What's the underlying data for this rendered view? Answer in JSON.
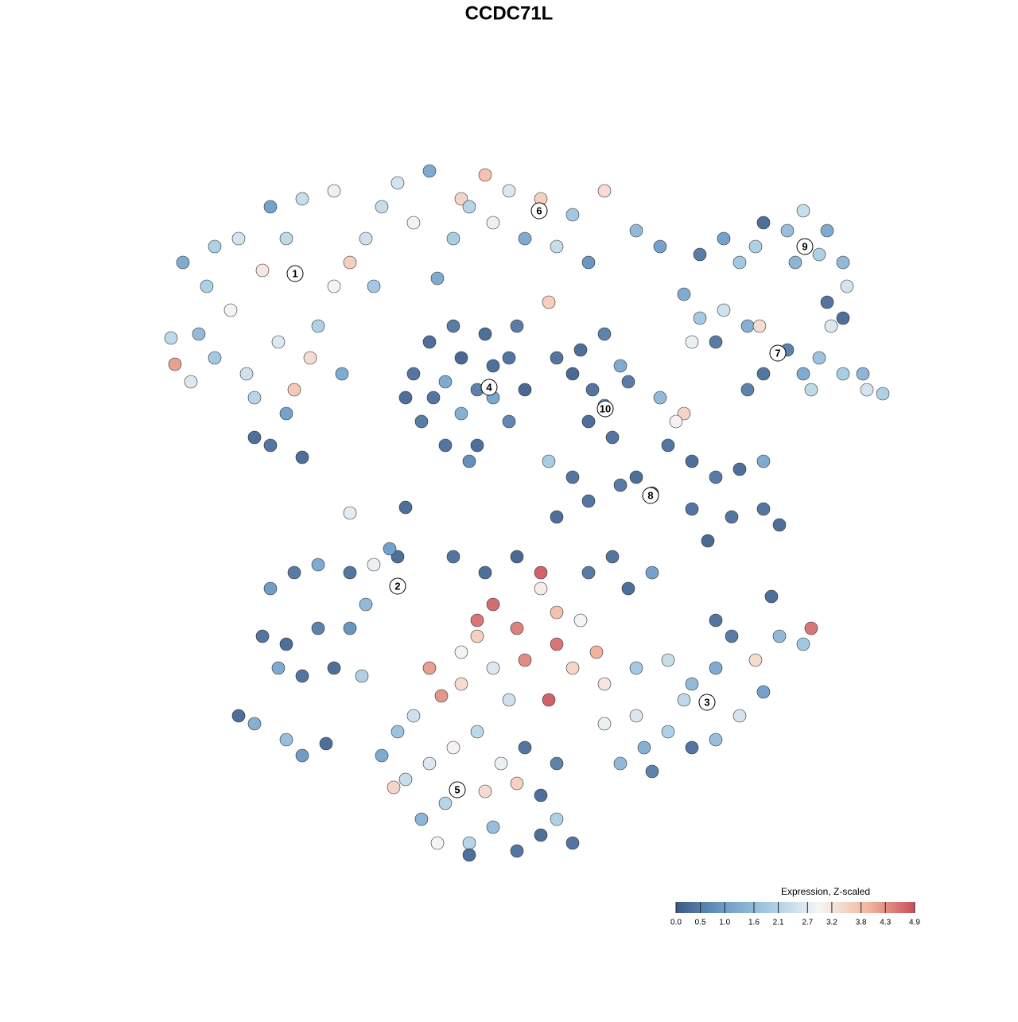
{
  "chart_data": {
    "type": "scatter",
    "title": "CCDC71L",
    "x": [
      -41,
      -38,
      -34,
      -30,
      -26,
      -22,
      -28,
      -31,
      -35,
      -39,
      -42.5,
      -42,
      -37,
      -33,
      -29,
      -25,
      -24,
      -20,
      -18,
      -17,
      -32,
      -28,
      -30,
      -26,
      -32,
      -22,
      -37,
      -40,
      -21,
      -27,
      -14,
      -10,
      -6,
      -3,
      0,
      4,
      8,
      12,
      16,
      19,
      6,
      2,
      -2,
      -7,
      -12,
      -16,
      -9,
      10,
      5,
      -5,
      -12,
      -10,
      -7,
      -3,
      0,
      2,
      0,
      -4,
      -8,
      -11,
      -8,
      -4,
      -2,
      -6,
      -13,
      -6,
      -2,
      -5,
      -9.5,
      1,
      24,
      27,
      31,
      35,
      37,
      40,
      42,
      42.5,
      40,
      42,
      32,
      29,
      36,
      39,
      22,
      24,
      27,
      30,
      31.5,
      35,
      37,
      39,
      42,
      45,
      47,
      44.5,
      38,
      32,
      23,
      26,
      40.5,
      30,
      6,
      9,
      12,
      14,
      15,
      12,
      10,
      13,
      8,
      10.5,
      22,
      21,
      20,
      23,
      26,
      29,
      32,
      32,
      34,
      28,
      25,
      23,
      18,
      14,
      10,
      6,
      8,
      5,
      16,
      19,
      -30,
      -27,
      -24,
      -20,
      -17,
      -14,
      -15,
      -31,
      -28,
      -24,
      -22,
      -26,
      -29,
      -34,
      -32,
      -28,
      -26,
      -23,
      -18,
      -20,
      -18.5,
      -2,
      1,
      -4,
      4,
      6,
      9,
      11,
      2,
      6,
      -2,
      -6,
      -8.5,
      -10,
      5,
      0,
      12,
      4,
      8,
      -4,
      -6,
      -3,
      -7,
      1,
      10,
      15,
      18,
      13,
      16,
      20,
      23,
      26,
      28,
      31,
      34,
      37,
      38,
      32,
      29,
      26,
      23,
      20,
      17,
      16,
      14,
      18,
      22,
      26,
      33,
      12,
      -14,
      -16,
      -13,
      -10,
      -7,
      -4,
      -1,
      1,
      -3,
      -8,
      -11,
      -9,
      -5,
      -2,
      1,
      4,
      6,
      8,
      4,
      6,
      2,
      -5,
      -14.5,
      -12,
      -20,
      -13
    ],
    "y": [
      31,
      28,
      34,
      38,
      39,
      40,
      34,
      30,
      25,
      22,
      21.5,
      18.2,
      19,
      17,
      21,
      19,
      23,
      31,
      34,
      28,
      14,
      12,
      8,
      6.5,
      9,
      28,
      33,
      16,
      17,
      15,
      41,
      42.5,
      39,
      42,
      40,
      39,
      37,
      40,
      35,
      33,
      33,
      34,
      36,
      34,
      36,
      38,
      29,
      31,
      26,
      38,
      17,
      21,
      23,
      22,
      19,
      15,
      11,
      8,
      8,
      11,
      16,
      15,
      14,
      12,
      14,
      19,
      18,
      6,
      14,
      23,
      32,
      34,
      33,
      35,
      37.5,
      35,
      31,
      28,
      26,
      24,
      36,
      31,
      31,
      32,
      27,
      24,
      25,
      23,
      23,
      20,
      17,
      19,
      17,
      15,
      14.5,
      17,
      15,
      17,
      21,
      21,
      23,
      15,
      19,
      20,
      22,
      18,
      16,
      13,
      11,
      9,
      17,
      15,
      12,
      11,
      8,
      6,
      4,
      5,
      6,
      0,
      -2,
      -1,
      -4,
      0,
      2,
      3,
      1,
      -1,
      4,
      6,
      4,
      14,
      -10,
      -8,
      -7,
      -8,
      -7,
      -6,
      -5,
      -16,
      -17,
      -15,
      -20,
      -21,
      -20,
      -26,
      -27,
      -29,
      -31,
      -29.5,
      -12,
      -15,
      -21,
      -12,
      -15,
      -16,
      -10,
      -13,
      -14,
      -18,
      -19,
      -17,
      -20,
      -22,
      -23.5,
      -20,
      -24,
      -24,
      -22,
      -8,
      -20,
      -14,
      -18,
      -8,
      -6,
      -6,
      -8,
      -10,
      -8,
      -6,
      -20,
      -19,
      -22,
      -20,
      -16,
      -19,
      -16,
      -17,
      -15,
      -23,
      -26,
      -29,
      -30,
      -28,
      -30,
      -26,
      -32,
      -33,
      -24,
      -14,
      -11,
      -27,
      -28,
      -31,
      -34,
      -32,
      -30,
      -28,
      -32,
      -34.5,
      -35.5,
      -37,
      -39,
      -42,
      -42,
      -40,
      -43,
      -41,
      -39,
      -42,
      -36,
      -32,
      -30,
      -43.5,
      -35,
      -26,
      -0.5,
      0.2
    ],
    "values": [
      1.2,
      2.0,
      2.5,
      1.0,
      2.3,
      2.8,
      2.2,
      3.2,
      2.9,
      1.5,
      2.2,
      4.2,
      1.8,
      2.4,
      2.6,
      3.4,
      2.0,
      3.6,
      2.4,
      1.8,
      2.1,
      1.0,
      0.3,
      0.2,
      0.2,
      2.9,
      2.0,
      2.6,
      1.2,
      3.7,
      2.5,
      1.2,
      3.5,
      3.8,
      2.6,
      3.6,
      1.8,
      3.4,
      1.5,
      1.0,
      2.3,
      1.2,
      2.8,
      1.9,
      3.0,
      2.3,
      1.2,
      0.8,
      3.6,
      2.1,
      0.3,
      0.2,
      0.4,
      0.2,
      0.3,
      0.1,
      0.6,
      0.2,
      0.3,
      0.4,
      1.2,
      0.5,
      1.1,
      1.3,
      0.2,
      0.1,
      0.2,
      0.7,
      0.3,
      0.4,
      0.4,
      1.0,
      2.0,
      1.6,
      2.3,
      1.2,
      1.5,
      2.5,
      0.3,
      0.2,
      0.2,
      1.8,
      1.4,
      2.0,
      1.2,
      1.8,
      2.4,
      1.3,
      3.4,
      0.5,
      1.2,
      1.7,
      1.9,
      2.5,
      2.0,
      1.4,
      2.2,
      0.3,
      2.8,
      0.4,
      2.6,
      0.5,
      0.3,
      0.2,
      0.5,
      1.2,
      0.4,
      0.8,
      0.2,
      0.3,
      0.1,
      0.3,
      3.5,
      3.0,
      0.3,
      0.2,
      0.4,
      0.2,
      1.2,
      0.3,
      0.2,
      0.3,
      0.1,
      0.3,
      0.2,
      0.4,
      0.3,
      0.2,
      0.3,
      1.9,
      0.2,
      1.5,
      0.9,
      0.4,
      1.2,
      0.3,
      2.8,
      0.2,
      1.0,
      0.3,
      0.2,
      0.5,
      0.2,
      0.3,
      1.2,
      0.2,
      1.3,
      1.6,
      0.9,
      0.2,
      1.5,
      0.8,
      2.0,
      4.7,
      4.5,
      3.6,
      3.1,
      3.8,
      2.9,
      4.0,
      4.4,
      4.6,
      2.6,
      3.4,
      4.3,
      4.2,
      4.8,
      2.4,
      3.2,
      4.8,
      3.5,
      4.6,
      3.0,
      0.2,
      0.3,
      0.1,
      0.4,
      0.2,
      1.0,
      0.3,
      1.8,
      2.3,
      1.5,
      1.2,
      0.4,
      3.4,
      1.5,
      1.8,
      4.6,
      1.0,
      2.5,
      1.6,
      0.3,
      2.0,
      1.3,
      2.6,
      1.5,
      0.5,
      2.2,
      0.3,
      0.2,
      2.8,
      1.7,
      1.2,
      2.3,
      2.6,
      3.0,
      2.2,
      2.8,
      3.6,
      3.4,
      2.1,
      1.4,
      2.9,
      2.1,
      1.6,
      0.3,
      0.2,
      2.0,
      0.3,
      0.2,
      0.5,
      0.3,
      0.2,
      3.5,
      2.4,
      2.7,
      0.2
    ],
    "clusters": [
      {
        "label": "1",
        "x": -26.9,
        "y": 29.6
      },
      {
        "label": "2",
        "x": -14,
        "y": -9.7
      },
      {
        "label": "3",
        "x": 24.9,
        "y": -24.3
      },
      {
        "label": "4",
        "x": -2.5,
        "y": 15.3
      },
      {
        "label": "5",
        "x": -6.5,
        "y": -35.3
      },
      {
        "label": "6",
        "x": 3.8,
        "y": 37.5
      },
      {
        "label": "7",
        "x": 33.8,
        "y": 19.6
      },
      {
        "label": "8",
        "x": 17.8,
        "y": 1.7
      },
      {
        "label": "9",
        "x": 37.2,
        "y": 33
      },
      {
        "label": "10",
        "x": 12.1,
        "y": 12.6
      }
    ],
    "colorbar": {
      "title": "Expression, Z-scaled",
      "clim": [
        0,
        4.9
      ],
      "ticks": [
        {
          "value": 0,
          "label": "0.0"
        },
        0.5,
        {
          "value": 1,
          "label": "1.0"
        },
        1.6,
        2.1,
        2.7,
        3.2,
        3.8,
        4.3,
        4.9
      ],
      "colors": [
        "#3b5a85",
        "#6c9cc8",
        "#a8cde3",
        "#f5f5f5",
        "#f3b9a0",
        "#c94f5c"
      ]
    }
  }
}
